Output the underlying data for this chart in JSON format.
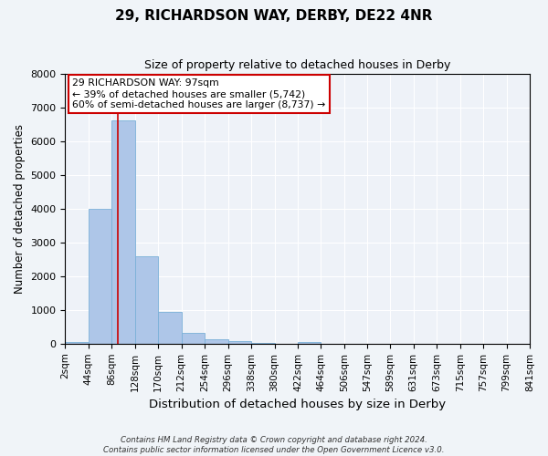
{
  "title": "29, RICHARDSON WAY, DERBY, DE22 4NR",
  "subtitle": "Size of property relative to detached houses in Derby",
  "xlabel": "Distribution of detached houses by size in Derby",
  "ylabel": "Number of detached properties",
  "bar_color": "#aec6e8",
  "bar_edge_color": "#7ab0d8",
  "background_color": "#eef2f8",
  "grid_color": "#ffffff",
  "bin_edges": [
    2,
    44,
    86,
    128,
    170,
    212,
    254,
    296,
    338,
    380,
    422,
    464,
    506,
    547,
    589,
    631,
    673,
    715,
    757,
    799,
    841
  ],
  "bin_labels": [
    "2sqm",
    "44sqm",
    "86sqm",
    "128sqm",
    "170sqm",
    "212sqm",
    "254sqm",
    "296sqm",
    "338sqm",
    "380sqm",
    "422sqm",
    "464sqm",
    "506sqm",
    "547sqm",
    "589sqm",
    "631sqm",
    "673sqm",
    "715sqm",
    "757sqm",
    "799sqm",
    "841sqm"
  ],
  "bar_heights": [
    50,
    4000,
    6600,
    2600,
    950,
    330,
    130,
    80,
    30,
    0,
    50,
    0,
    0,
    0,
    0,
    0,
    0,
    0,
    0,
    0
  ],
  "ylim": [
    0,
    8000
  ],
  "yticks": [
    0,
    1000,
    2000,
    3000,
    4000,
    5000,
    6000,
    7000,
    8000
  ],
  "property_line_x": 97,
  "property_line_color": "#cc0000",
  "annotation_title": "29 RICHARDSON WAY: 97sqm",
  "annotation_line1": "← 39% of detached houses are smaller (5,742)",
  "annotation_line2": "60% of semi-detached houses are larger (8,737) →",
  "annotation_box_color": "#ffffff",
  "annotation_box_edge_color": "#cc0000",
  "footer1": "Contains HM Land Registry data © Crown copyright and database right 2024.",
  "footer2": "Contains public sector information licensed under the Open Government Licence v3.0."
}
